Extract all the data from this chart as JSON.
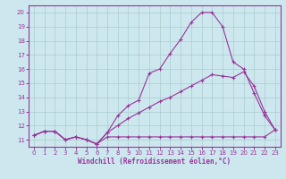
{
  "xlabel": "Windchill (Refroidissement éolien,°C)",
  "ylabel": "",
  "bg_color": "#cce8ee",
  "line_color": "#993399",
  "grid_color": "#aacccc",
  "xlim": [
    -0.5,
    23.5
  ],
  "ylim": [
    10.5,
    20.5
  ],
  "xticks": [
    0,
    1,
    2,
    3,
    4,
    5,
    6,
    7,
    8,
    9,
    10,
    11,
    12,
    13,
    14,
    15,
    16,
    17,
    18,
    19,
    20,
    21,
    22,
    23
  ],
  "yticks": [
    11,
    12,
    13,
    14,
    15,
    16,
    17,
    18,
    19,
    20
  ],
  "line1_x": [
    0,
    1,
    2,
    3,
    4,
    5,
    6,
    7,
    8,
    9,
    10,
    11,
    12,
    13,
    14,
    15,
    16,
    17,
    18,
    19,
    20,
    21,
    22,
    23
  ],
  "line1_y": [
    11.3,
    11.6,
    11.6,
    11.0,
    11.2,
    11.0,
    10.7,
    11.2,
    11.2,
    11.2,
    11.2,
    11.2,
    11.2,
    11.2,
    11.2,
    11.2,
    11.2,
    11.2,
    11.2,
    11.2,
    11.2,
    11.2,
    11.2,
    11.7
  ],
  "line2_x": [
    0,
    1,
    2,
    3,
    4,
    5,
    6,
    7,
    8,
    9,
    10,
    11,
    12,
    13,
    14,
    15,
    16,
    17,
    18,
    19,
    20,
    21,
    22,
    23
  ],
  "line2_y": [
    11.3,
    11.6,
    11.6,
    11.0,
    11.2,
    11.0,
    10.7,
    11.5,
    12.7,
    13.4,
    13.8,
    15.7,
    16.0,
    17.1,
    18.1,
    19.3,
    20.0,
    20.0,
    19.0,
    16.5,
    16.0,
    14.3,
    12.7,
    11.7
  ],
  "line3_x": [
    0,
    1,
    2,
    3,
    4,
    5,
    6,
    7,
    8,
    9,
    10,
    11,
    12,
    13,
    14,
    15,
    16,
    17,
    18,
    19,
    20,
    21,
    22,
    23
  ],
  "line3_y": [
    11.3,
    11.6,
    11.6,
    11.0,
    11.2,
    11.0,
    10.7,
    11.5,
    12.0,
    12.5,
    12.9,
    13.3,
    13.7,
    14.0,
    14.4,
    14.8,
    15.2,
    15.6,
    15.5,
    15.4,
    15.8,
    14.8,
    13.0,
    11.7
  ]
}
